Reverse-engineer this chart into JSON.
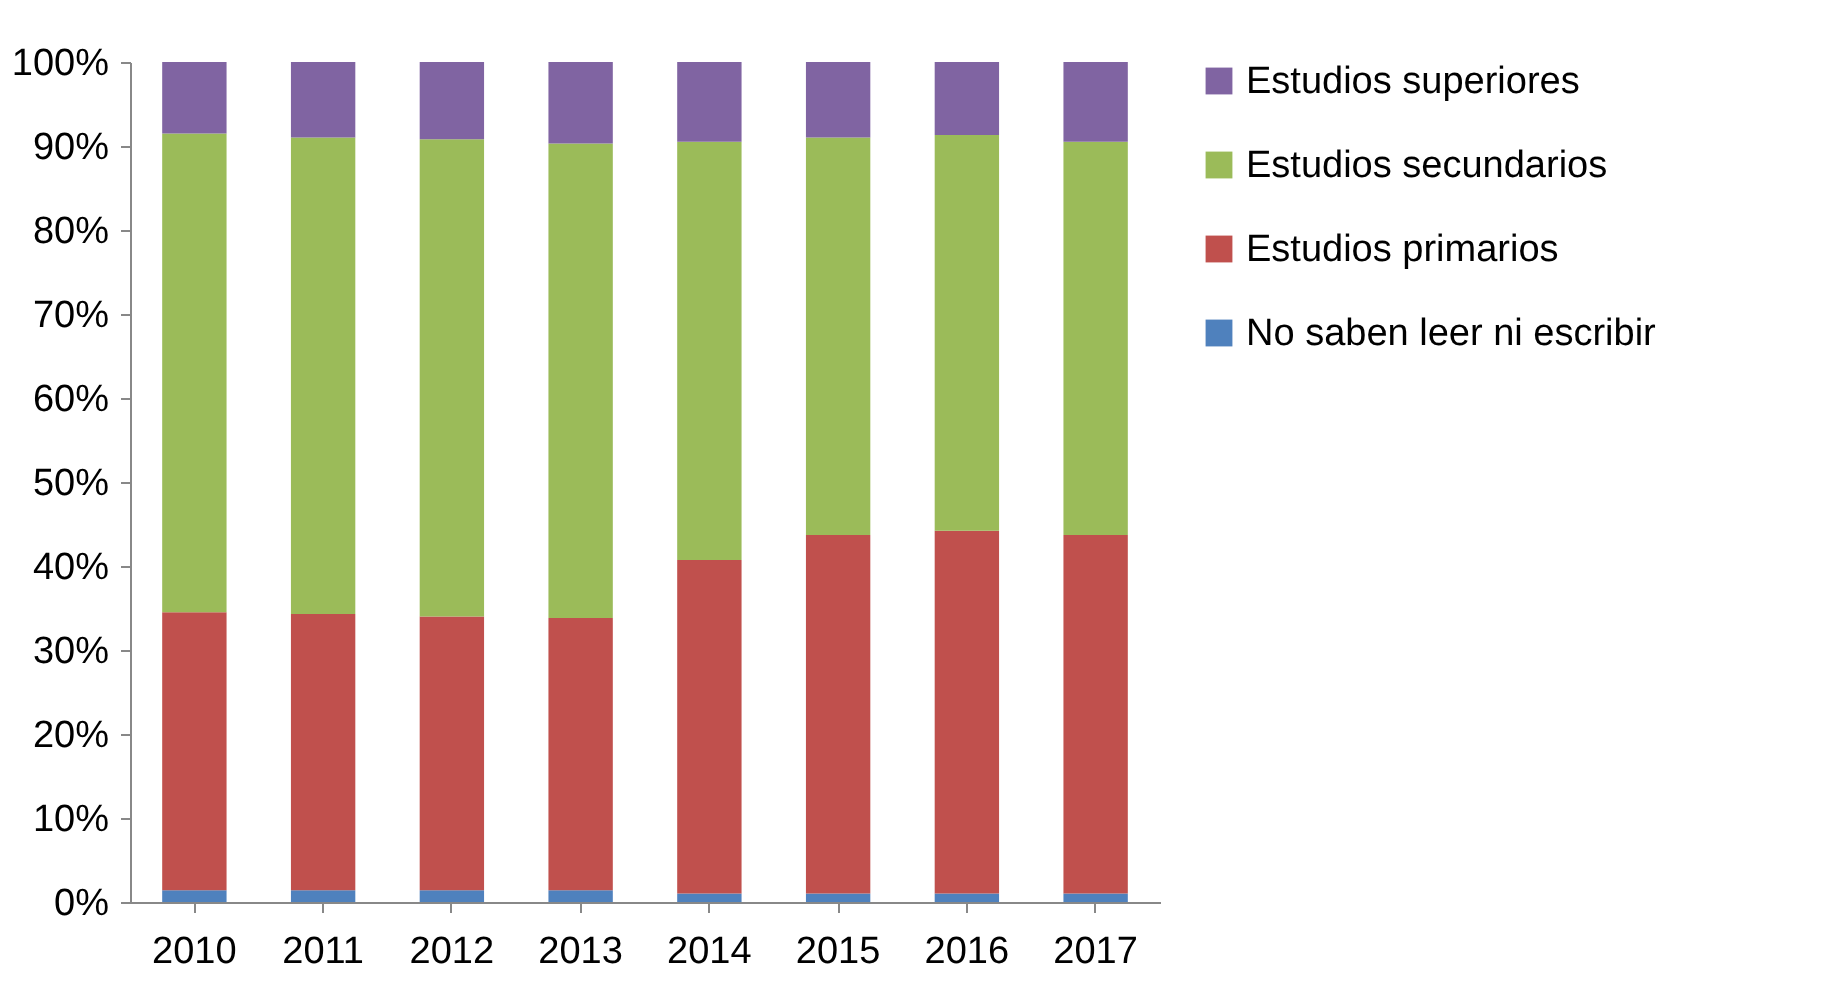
{
  "chart_data": {
    "type": "bar",
    "stacked": true,
    "categories": [
      "2010",
      "2011",
      "2012",
      "2013",
      "2014",
      "2015",
      "2016",
      "2017"
    ],
    "series": [
      {
        "name": "No saben leer ni escribir",
        "color": "#4f81bd",
        "values": [
          1.4,
          1.4,
          1.4,
          1.4,
          1.0,
          1.0,
          1.0,
          1.0
        ]
      },
      {
        "name": "Estudios primarios",
        "color": "#c0504d",
        "values": [
          33.1,
          32.9,
          32.6,
          32.4,
          39.7,
          42.7,
          43.2,
          42.7
        ]
      },
      {
        "name": "Estudios secundarios",
        "color": "#9bbb59",
        "values": [
          57.0,
          56.7,
          56.8,
          56.5,
          49.8,
          47.3,
          47.1,
          46.8
        ]
      },
      {
        "name": "Estudios superiores",
        "color": "#8064a2",
        "values": [
          8.5,
          9.0,
          9.2,
          9.7,
          9.5,
          9.0,
          8.7,
          9.5
        ]
      }
    ],
    "ylim": [
      0,
      100
    ],
    "yticks": [
      {
        "value": 0,
        "label": "0%"
      },
      {
        "value": 10,
        "label": "10%"
      },
      {
        "value": 20,
        "label": "20%"
      },
      {
        "value": 30,
        "label": "30%"
      },
      {
        "value": 40,
        "label": "40%"
      },
      {
        "value": 50,
        "label": "50%"
      },
      {
        "value": 60,
        "label": "60%"
      },
      {
        "value": 70,
        "label": "70%"
      },
      {
        "value": 80,
        "label": "80%"
      },
      {
        "value": 90,
        "label": "90%"
      },
      {
        "value": 100,
        "label": "100%"
      }
    ],
    "grid": false,
    "legend": "right"
  }
}
